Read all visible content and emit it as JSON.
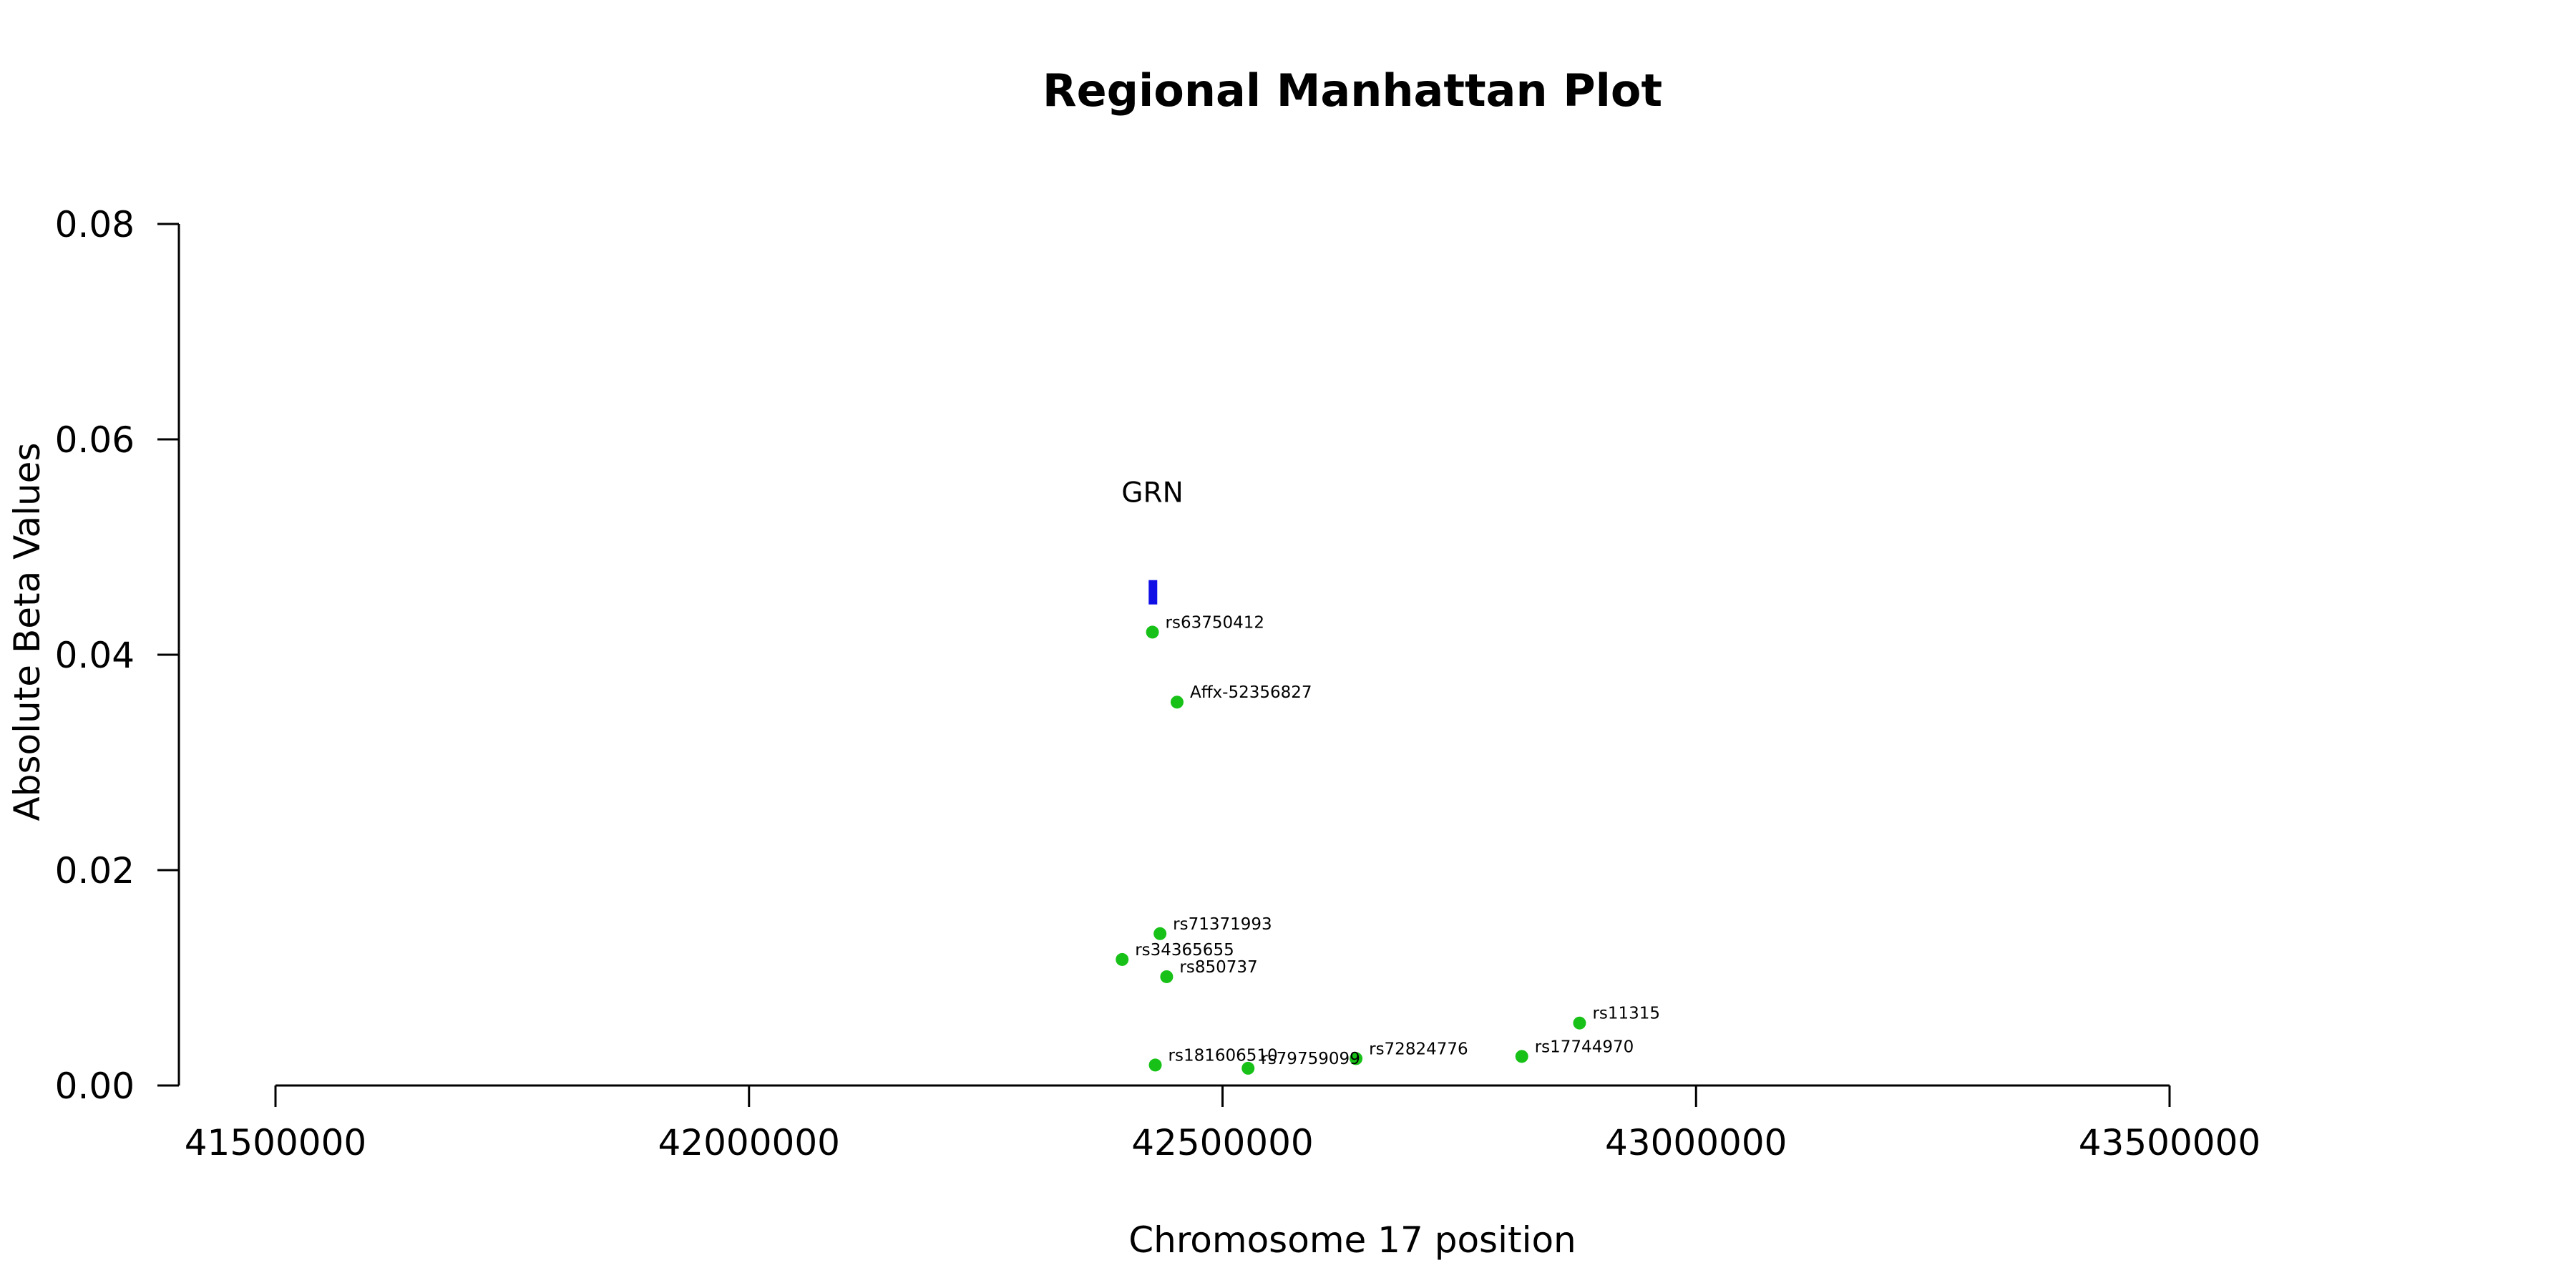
{
  "chart_data": {
    "type": "scatter",
    "title": "Regional Manhattan Plot",
    "xlabel": "Chromosome 17 position",
    "ylabel": "Absolute Beta Values",
    "xlim": [
      41500000,
      43500000
    ],
    "ylim": [
      0,
      0.08
    ],
    "x_ticks": [
      "41500000",
      "42000000",
      "42500000",
      "43000000",
      "43500000"
    ],
    "y_ticks": [
      "0.00",
      "0.02",
      "0.04",
      "0.06",
      "0.08"
    ],
    "grid": false,
    "point_color": "#17c117",
    "gene_color": "#1010e6",
    "gene": {
      "name": "GRN",
      "start": 42422000,
      "end": 42430000,
      "y": 0.0458
    },
    "points": [
      {
        "label": "rs63750412",
        "x": 42426000,
        "y": 0.0421
      },
      {
        "label": "Affx-52356827",
        "x": 42452000,
        "y": 0.0356
      },
      {
        "label": "rs71371993",
        "x": 42434000,
        "y": 0.0141
      },
      {
        "label": "rs34365655",
        "x": 42394000,
        "y": 0.0117
      },
      {
        "label": "rs850737",
        "x": 42441000,
        "y": 0.0101
      },
      {
        "label": "rs11315",
        "x": 42877000,
        "y": 0.0058
      },
      {
        "label": "rs17744970",
        "x": 42816000,
        "y": 0.0027
      },
      {
        "label": "rs72824776",
        "x": 42641000,
        "y": 0.0025
      },
      {
        "label": "rs181606510",
        "x": 42429000,
        "y": 0.0019
      },
      {
        "label": "rs79759099",
        "x": 42527000,
        "y": 0.0016
      }
    ]
  }
}
